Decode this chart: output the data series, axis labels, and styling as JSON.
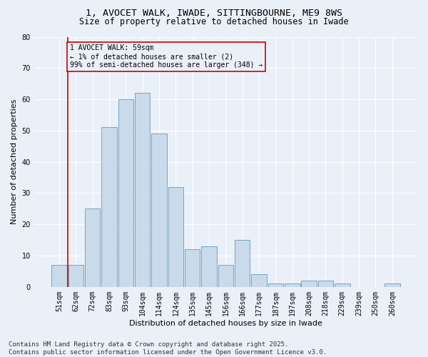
{
  "title_line1": "1, AVOCET WALK, IWADE, SITTINGBOURNE, ME9 8WS",
  "title_line2": "Size of property relative to detached houses in Iwade",
  "xlabel": "Distribution of detached houses by size in Iwade",
  "ylabel": "Number of detached properties",
  "footnote": "Contains HM Land Registry data © Crown copyright and database right 2025.\nContains public sector information licensed under the Open Government Licence v3.0.",
  "bar_labels": [
    "51sqm",
    "62sqm",
    "72sqm",
    "83sqm",
    "93sqm",
    "104sqm",
    "114sqm",
    "124sqm",
    "135sqm",
    "145sqm",
    "156sqm",
    "166sqm",
    "177sqm",
    "187sqm",
    "197sqm",
    "208sqm",
    "218sqm",
    "229sqm",
    "239sqm",
    "250sqm",
    "260sqm"
  ],
  "bar_heights": [
    7,
    7,
    25,
    51,
    60,
    62,
    49,
    32,
    12,
    13,
    7,
    15,
    4,
    1,
    1,
    2,
    2,
    1,
    0,
    0,
    1
  ],
  "bar_color_fill": "#c9daea",
  "bar_color_edge": "#6699bb",
  "annotation_line_color": "#cc0000",
  "annotation_box_color": "#cc0000",
  "annotation_text": "1 AVOCET WALK: 59sqm\n← 1% of detached houses are smaller (2)\n99% of semi-detached houses are larger (348) →",
  "vline_x": 0.5,
  "ylim": [
    0,
    80
  ],
  "yticks": [
    0,
    10,
    20,
    30,
    40,
    50,
    60,
    70,
    80
  ],
  "background_color": "#eaf0f8",
  "grid_color": "#ffffff",
  "title_fontsize": 9.5,
  "subtitle_fontsize": 8.5,
  "axis_label_fontsize": 8,
  "tick_fontsize": 7,
  "footnote_fontsize": 6.5,
  "annotation_fontsize": 7
}
